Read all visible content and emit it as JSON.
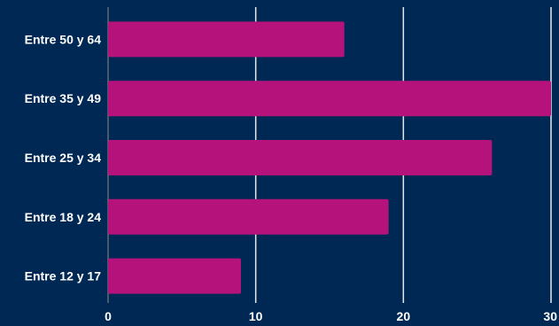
{
  "chart_data": {
    "type": "bar",
    "orientation": "horizontal",
    "categories": [
      "Entre 50 y 64",
      "Entre 35 y 49",
      "Entre 25 y 34",
      "Entre 18 y 24",
      "Entre 12 y 17"
    ],
    "values": [
      16,
      30,
      26,
      19,
      9
    ],
    "title": "",
    "xlabel": "",
    "ylabel": "",
    "xlim": [
      0,
      30
    ],
    "x_ticks": [
      "0",
      "10",
      "20",
      "30"
    ],
    "grid": true,
    "legend": "none",
    "colors": {
      "background": "#002855",
      "bar": "#b5137b",
      "grid": "#e8e8e8",
      "text": "#ffffff"
    }
  }
}
